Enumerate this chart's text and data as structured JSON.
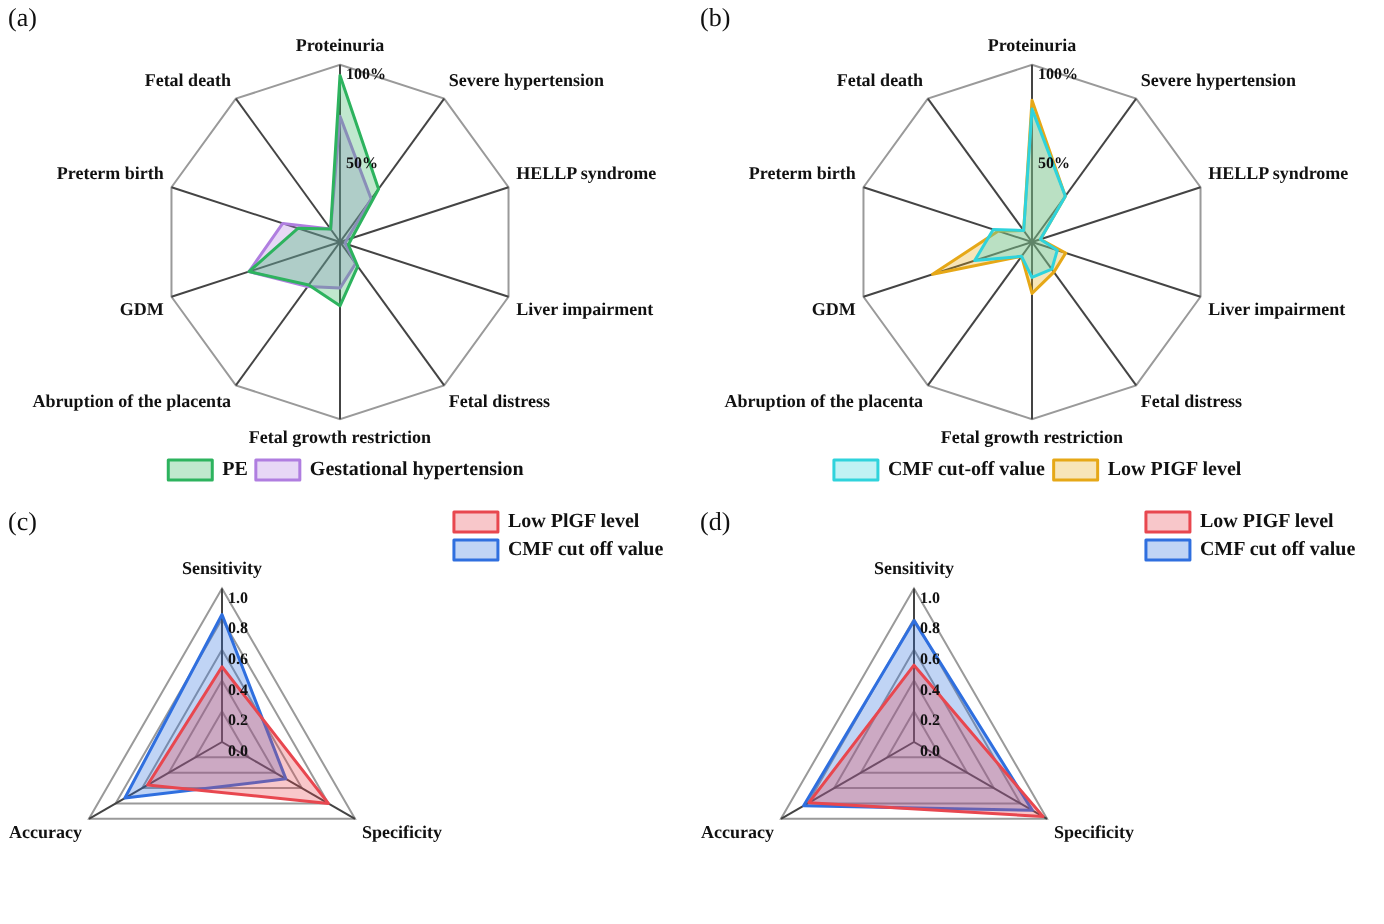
{
  "chart_data": [
    {
      "type": "radar",
      "title": "(a)",
      "categories": [
        "Proteinuria",
        "Severe hypertension",
        "HELLP syndrome",
        "Liver impairment",
        "Fetal distress",
        "Fetal growth restriction",
        "Abruption of the placenta",
        "GDM",
        "Preterm birth",
        "Fetal death"
      ],
      "series": [
        {
          "name": "PE",
          "color": "#2db35e",
          "values": [
            94,
            37,
            7,
            5,
            17,
            36,
            30,
            54,
            25,
            9
          ]
        },
        {
          "name": "Gestational hypertension",
          "color": "#b07ee0",
          "values": [
            71,
            30,
            4,
            3,
            15,
            26,
            31,
            54,
            34,
            9
          ]
        }
      ],
      "ylim": [
        0,
        100
      ],
      "yticks": [
        {
          "value": 50,
          "label": "50%"
        },
        {
          "value": 100,
          "label": "100%"
        }
      ],
      "grid": true,
      "legend": "bottom"
    },
    {
      "type": "radar",
      "title": "(b)",
      "categories": [
        "Proteinuria",
        "Severe hypertension",
        "HELLP syndrome",
        "Liver impairment",
        "Fetal distress",
        "Fetal growth restriction",
        "Abruption of the placenta",
        "GDM",
        "Preterm birth",
        "Fetal death"
      ],
      "series": [
        {
          "name": "CMF cut-off value",
          "color": "#2fd3dc",
          "values": [
            75,
            32,
            5,
            15,
            19,
            20,
            10,
            34,
            23,
            8
          ]
        },
        {
          "name": "Low PIGF level",
          "color": "#e6a817",
          "values": [
            80,
            32,
            5,
            20,
            21,
            29,
            10,
            59,
            20,
            8
          ]
        }
      ],
      "ylim": [
        0,
        100
      ],
      "yticks": [
        {
          "value": 50,
          "label": "50%"
        },
        {
          "value": 100,
          "label": "100%"
        }
      ],
      "grid": true,
      "legend": "bottom"
    },
    {
      "type": "radar",
      "title": "(c)",
      "categories": [
        "Sensitivity",
        "Specificity",
        "Accuracy"
      ],
      "series": [
        {
          "name": "Low PlGF level",
          "color": "#e8474f",
          "values": [
            0.49,
            0.8,
            0.56
          ]
        },
        {
          "name": "CMF cut off value",
          "color": "#2f6fdf",
          "values": [
            0.83,
            0.48,
            0.73
          ]
        }
      ],
      "ylim": [
        0,
        1
      ],
      "yticks": [
        {
          "value": 0,
          "label": "0.0"
        },
        {
          "value": 0.2,
          "label": "0.2"
        },
        {
          "value": 0.4,
          "label": "0.4"
        },
        {
          "value": 0.6,
          "label": "0.6"
        },
        {
          "value": 0.8,
          "label": "0.8"
        },
        {
          "value": 1,
          "label": "1.0"
        }
      ],
      "grid": true,
      "legend": "top right"
    },
    {
      "type": "radar",
      "title": "(d)",
      "categories": [
        "Sensitivity",
        "Specificity",
        "Accuracy"
      ],
      "series": [
        {
          "name": "Low PIGF level",
          "color": "#e8474f",
          "values": [
            0.5,
            0.97,
            0.79
          ]
        },
        {
          "name": "CMF cut off value",
          "color": "#2f6fdf",
          "values": [
            0.79,
            0.89,
            0.83
          ]
        }
      ],
      "ylim": [
        0,
        1
      ],
      "yticks": [
        {
          "value": 0,
          "label": "0.0"
        },
        {
          "value": 0.2,
          "label": "0.2"
        },
        {
          "value": 0.4,
          "label": "0.4"
        },
        {
          "value": 0.6,
          "label": "0.6"
        },
        {
          "value": 0.8,
          "label": "0.8"
        },
        {
          "value": 1,
          "label": "1.0"
        }
      ],
      "grid": true,
      "legend": "top right"
    }
  ]
}
